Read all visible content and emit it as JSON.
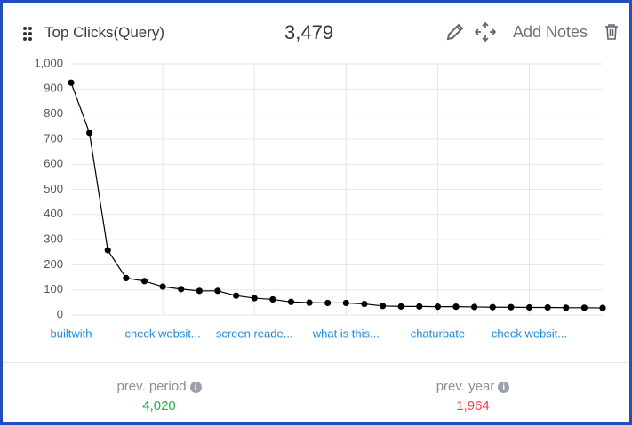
{
  "header": {
    "title": "Top Clicks(Query)",
    "total": "3,479",
    "add_notes": "Add Notes"
  },
  "footer": {
    "prev_period": {
      "label": "prev. period",
      "value": "4,020"
    },
    "prev_year": {
      "label": "prev. year",
      "value": "1,964"
    }
  },
  "chart_data": {
    "type": "line",
    "categories": [
      "builtwith",
      null,
      null,
      null,
      null,
      "check websit...",
      null,
      null,
      null,
      null,
      "screen reade...",
      null,
      null,
      null,
      null,
      "what is this...",
      null,
      null,
      null,
      null,
      "chaturbate",
      null,
      null,
      null,
      null,
      "check websit...",
      null,
      null,
      null,
      null
    ],
    "values": [
      925,
      725,
      258,
      147,
      135,
      113,
      103,
      96,
      96,
      77,
      67,
      62,
      52,
      49,
      48,
      48,
      44,
      36,
      34,
      34,
      33,
      33,
      32,
      31,
      31,
      30,
      30,
      29,
      29,
      28
    ],
    "color": "#000000",
    "ylim": [
      0,
      1000
    ],
    "yticks": [
      0,
      100,
      200,
      300,
      400,
      500,
      600,
      700,
      800,
      900,
      {
        "value": 1000,
        "label": "1,000"
      }
    ],
    "grid": true
  }
}
